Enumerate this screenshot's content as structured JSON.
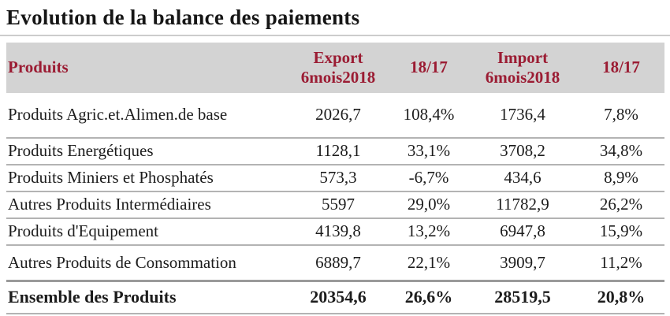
{
  "title": "Evolution de la balance des paiements",
  "colors": {
    "accent_maroon": "#9b1c33",
    "header_background": "#d3d3d3",
    "separator_gray": "#b3b3b3",
    "text": "#1c1c1c"
  },
  "table": {
    "headers": {
      "produits": "Produits",
      "export_line1": "Export",
      "export_line2": "6mois2018",
      "export_var": "18/17",
      "import_line1": "Import",
      "import_line2": "6mois2018",
      "import_var": "18/17"
    },
    "rows": [
      {
        "label": "Produits Agric.et.Alimen.de base",
        "export": "2026,7",
        "export_var": "108,4%",
        "import": "1736,4",
        "import_var": "7,8%"
      },
      {
        "label": "Produits Energétiques",
        "export": "1128,1",
        "export_var": "33,1%",
        "import": "3708,2",
        "import_var": "34,8%"
      },
      {
        "label": "Produits Miniers et Phosphatés",
        "export": "573,3",
        "export_var": "-6,7%",
        "import": "434,6",
        "import_var": "8,9%"
      },
      {
        "label": "Autres Produits Intermédiaires",
        "export": "5597",
        "export_var": "29,0%",
        "import": "11782,9",
        "import_var": "26,2%"
      },
      {
        "label": "Produits d'Equipement",
        "export": "4139,8",
        "export_var": "13,2%",
        "import": "6947,8",
        "import_var": "15,9%"
      },
      {
        "label": "Autres Produits de Consommation",
        "export": "6889,7",
        "export_var": "22,1%",
        "import": "3909,7",
        "import_var": "11,2%"
      }
    ],
    "total_row": {
      "label": "Ensemble des Produits",
      "export": "20354,6",
      "export_var": "26,6%",
      "import": "28519,5",
      "import_var": "20,8%"
    }
  }
}
